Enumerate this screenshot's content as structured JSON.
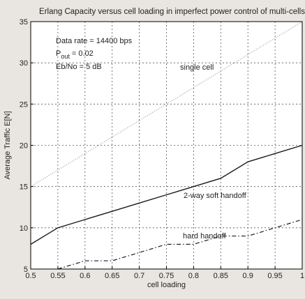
{
  "chart_data": {
    "type": "line",
    "title": "Erlang Capacity versus cell loading in imperfect power control of multi-cells",
    "xlabel": "cell loading",
    "ylabel": "Average Traffic E[N]",
    "xlim": [
      0.5,
      1.0
    ],
    "ylim": [
      5,
      35
    ],
    "xticks": [
      "0.5",
      "0.55",
      "0.6",
      "0.65",
      "0.7",
      "0.75",
      "0.8",
      "0.85",
      "0.9",
      "0.95",
      "1"
    ],
    "yticks": [
      "5",
      "10",
      "15",
      "20",
      "25",
      "30",
      "35"
    ],
    "grid": true,
    "annotations": {
      "data_rate": "Data rate = 14400 bps",
      "pout_label": "P",
      "pout_sub": "out",
      "pout_value": " = 0.02",
      "ebno": "Eb/No = 5 dB"
    },
    "series": [
      {
        "name": "single cell",
        "style": "dotted",
        "color": "#9a9a9a",
        "x": [
          0.5,
          0.55,
          0.6,
          0.65,
          0.7,
          0.75,
          0.8,
          0.85,
          0.9,
          0.95,
          1.0
        ],
        "y": [
          15,
          17,
          19,
          21,
          23,
          25,
          27,
          29,
          31,
          33,
          35
        ]
      },
      {
        "name": "2-way soft handoff",
        "style": "solid",
        "color": "#1a1a1a",
        "x": [
          0.5,
          0.55,
          0.6,
          0.65,
          0.7,
          0.75,
          0.8,
          0.85,
          0.9,
          0.95,
          1.0
        ],
        "y": [
          8,
          10,
          11,
          12,
          13,
          14,
          15,
          16,
          18,
          19,
          20
        ]
      },
      {
        "name": "hard handoff",
        "style": "dashdot",
        "color": "#1a1a1a",
        "x": [
          0.55,
          0.6,
          0.65,
          0.7,
          0.75,
          0.8,
          0.85,
          0.9,
          0.95,
          1.0
        ],
        "y": [
          5,
          6,
          6,
          7,
          8,
          8,
          9,
          9,
          10,
          11
        ]
      }
    ]
  }
}
